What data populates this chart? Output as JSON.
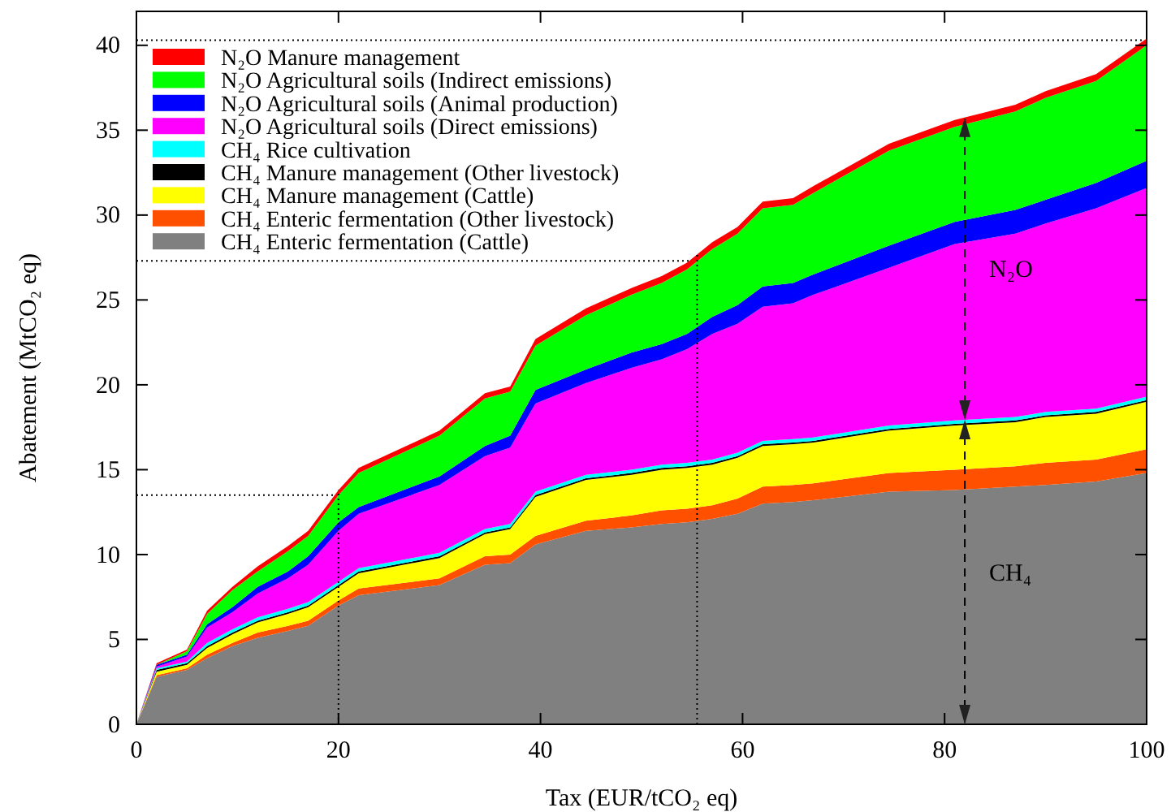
{
  "chart_data": {
    "type": "area",
    "stacked": true,
    "xlabel": "Tax (EUR/tCO₂ eq)",
    "ylabel": "Abatement (MtCO₂ eq)",
    "x": [
      0,
      2,
      5,
      7,
      9.5,
      12,
      15,
      17,
      20,
      22,
      30,
      34.5,
      37,
      39.5,
      44.5,
      49,
      52,
      54.5,
      57,
      59.5,
      62,
      65,
      67,
      74.5,
      81,
      87,
      90,
      95,
      100
    ],
    "xlim": [
      0,
      100
    ],
    "xticks": [
      0,
      20,
      40,
      60,
      80,
      100
    ],
    "ylim": [
      0,
      42
    ],
    "yticks": [
      0,
      5,
      10,
      15,
      20,
      25,
      30,
      35,
      40
    ],
    "grid": false,
    "legend": "top left",
    "series": [
      {
        "name": "CH₄ Enteric fermentation (Cattle)",
        "color": "#808080",
        "values": [
          0,
          2.8,
          3.2,
          3.9,
          4.6,
          5.1,
          5.5,
          5.8,
          7.0,
          7.6,
          8.2,
          9.4,
          9.5,
          10.6,
          11.4,
          11.6,
          11.8,
          11.9,
          12.1,
          12.4,
          13.0,
          13.1,
          13.2,
          13.7,
          13.8,
          14.0,
          14.1,
          14.3,
          14.8
        ]
      },
      {
        "name": "CH₄ Enteric fermentation (Other livestock)",
        "color": "#ff5000",
        "values": [
          0,
          0.1,
          0.1,
          0.2,
          0.2,
          0.3,
          0.3,
          0.3,
          0.3,
          0.4,
          0.4,
          0.5,
          0.5,
          0.5,
          0.6,
          0.7,
          0.8,
          0.8,
          0.8,
          0.9,
          1.0,
          1.0,
          1.0,
          1.1,
          1.2,
          1.2,
          1.3,
          1.3,
          1.4
        ]
      },
      {
        "name": "CH₄ Manure management (Cattle)",
        "color": "#ffff00",
        "values": [
          0,
          0.2,
          0.2,
          0.4,
          0.5,
          0.6,
          0.7,
          0.8,
          0.8,
          0.9,
          1.2,
          1.3,
          1.5,
          2.3,
          2.4,
          2.4,
          2.4,
          2.4,
          2.4,
          2.4,
          2.4,
          2.4,
          2.4,
          2.5,
          2.6,
          2.6,
          2.7,
          2.7,
          2.8
        ]
      },
      {
        "name": "CH₄ Manure management (Other livestock)",
        "color": "#000000",
        "values": [
          0,
          0.1,
          0.1,
          0.1,
          0.1,
          0.1,
          0.1,
          0.1,
          0.1,
          0.1,
          0.1,
          0.1,
          0.1,
          0.1,
          0.1,
          0.1,
          0.1,
          0.1,
          0.1,
          0.1,
          0.1,
          0.1,
          0.1,
          0.1,
          0.1,
          0.1,
          0.1,
          0.1,
          0.1
        ]
      },
      {
        "name": "CH₄ Rice cultivation",
        "color": "#00ffff",
        "values": [
          0,
          0.1,
          0.1,
          0.2,
          0.2,
          0.2,
          0.2,
          0.2,
          0.2,
          0.2,
          0.2,
          0.2,
          0.2,
          0.2,
          0.2,
          0.2,
          0.2,
          0.2,
          0.2,
          0.2,
          0.2,
          0.2,
          0.2,
          0.2,
          0.2,
          0.2,
          0.2,
          0.2,
          0.2
        ]
      },
      {
        "name": "N₂O Agricultural soils (Direct emissions)",
        "color": "#ff00ff",
        "values": [
          0,
          0.1,
          0.3,
          0.9,
          1.0,
          1.4,
          1.8,
          2.2,
          3.0,
          3.2,
          4.0,
          4.3,
          4.5,
          5.2,
          5.4,
          6.0,
          6.2,
          6.7,
          7.4,
          7.6,
          7.9,
          8.0,
          8.4,
          9.3,
          10.4,
          10.8,
          11.1,
          11.8,
          12.3
        ]
      },
      {
        "name": "N₂O Agricultural soils (Animal production)",
        "color": "#0000ff",
        "values": [
          0,
          0.1,
          0.1,
          0.2,
          0.3,
          0.4,
          0.4,
          0.5,
          0.5,
          0.4,
          0.5,
          0.6,
          0.7,
          0.8,
          0.8,
          0.9,
          0.9,
          0.9,
          1.0,
          1.1,
          1.2,
          1.2,
          1.2,
          1.3,
          1.3,
          1.4,
          1.4,
          1.5,
          1.6
        ]
      },
      {
        "name": "N₂O Agricultural soils (Indirect emissions)",
        "color": "#00ff00",
        "values": [
          0,
          0,
          0.2,
          0.6,
          1.0,
          0.9,
          1.2,
          1.2,
          1.6,
          2.0,
          2.4,
          2.8,
          2.6,
          2.6,
          3.2,
          3.4,
          3.6,
          3.8,
          4.0,
          4.2,
          4.6,
          4.6,
          4.8,
          5.6,
          5.6,
          5.8,
          6.0,
          6.0,
          6.8
        ]
      },
      {
        "name": "N₂O Manure management",
        "color": "#ff0000",
        "values": [
          0,
          0.1,
          0.1,
          0.2,
          0.2,
          0.3,
          0.3,
          0.3,
          0.3,
          0.3,
          0.3,
          0.3,
          0.3,
          0.4,
          0.4,
          0.4,
          0.4,
          0.4,
          0.4,
          0.4,
          0.4,
          0.4,
          0.4,
          0.4,
          0.4,
          0.4,
          0.4,
          0.4,
          0.4
        ]
      }
    ],
    "ref_lines": [
      {
        "axis": "y",
        "value": 40.3,
        "line_style": "dotted"
      },
      {
        "axis": "y",
        "value": 27.3,
        "line_style": "dotted"
      },
      {
        "axis": "y",
        "value": 13.5,
        "line_style": "dotted"
      },
      {
        "axis": "x",
        "value": 20,
        "line_style": "dotted"
      },
      {
        "axis": "x",
        "value": 55.5,
        "line_style": "dotted"
      }
    ],
    "annotations": [
      "N₂O",
      "CH₄"
    ]
  }
}
